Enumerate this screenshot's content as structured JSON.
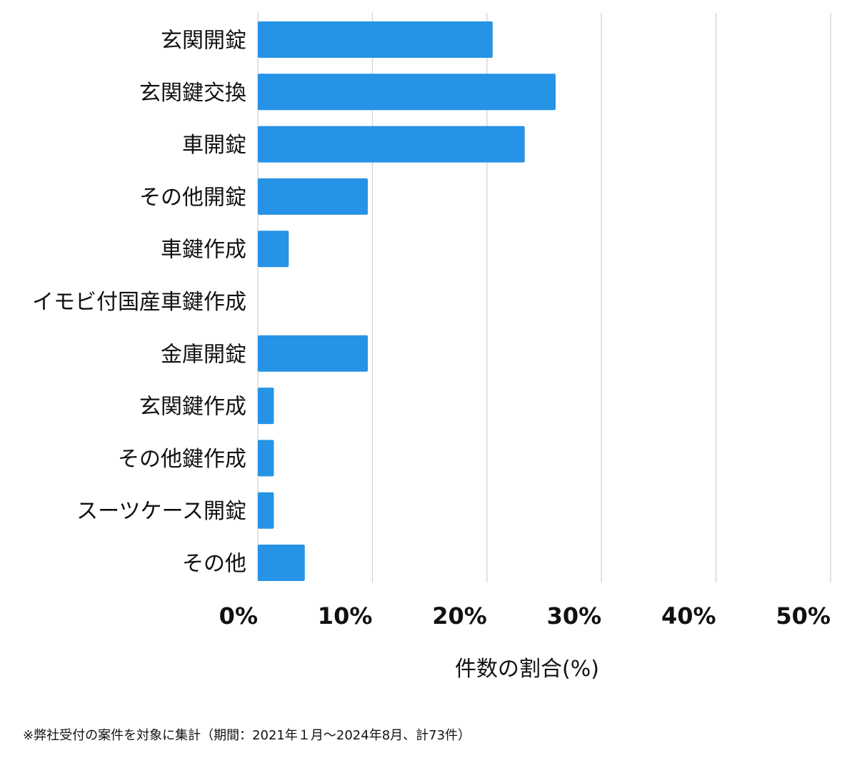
{
  "chart_data": {
    "type": "bar",
    "orientation": "horizontal",
    "categories": [
      "玄関開錠",
      "玄関鍵交換",
      "車開錠",
      "その他開錠",
      "車鍵作成",
      "イモビ付国産車鍵作成",
      "金庫開錠",
      "玄関鍵作成",
      "その他鍵作成",
      "スーツケース開錠",
      "その他"
    ],
    "values": [
      20.5,
      26.0,
      23.3,
      9.6,
      2.7,
      0,
      9.6,
      1.4,
      1.4,
      1.4,
      4.1
    ],
    "xlim": [
      0,
      50
    ],
    "x_ticks": [
      0,
      10,
      20,
      30,
      40,
      50
    ],
    "x_tick_labels": [
      "0%",
      "10%",
      "20%",
      "30%",
      "40%",
      "50%"
    ],
    "xlabel": "件数の割合(%)",
    "title": "",
    "grid": true,
    "bar_color": "#2693e6",
    "grid_color": "#d0d0d0"
  },
  "footnote": "※弊社受付の案件を対象に集計（期間：2021年１月～2024年8月、計73件）"
}
